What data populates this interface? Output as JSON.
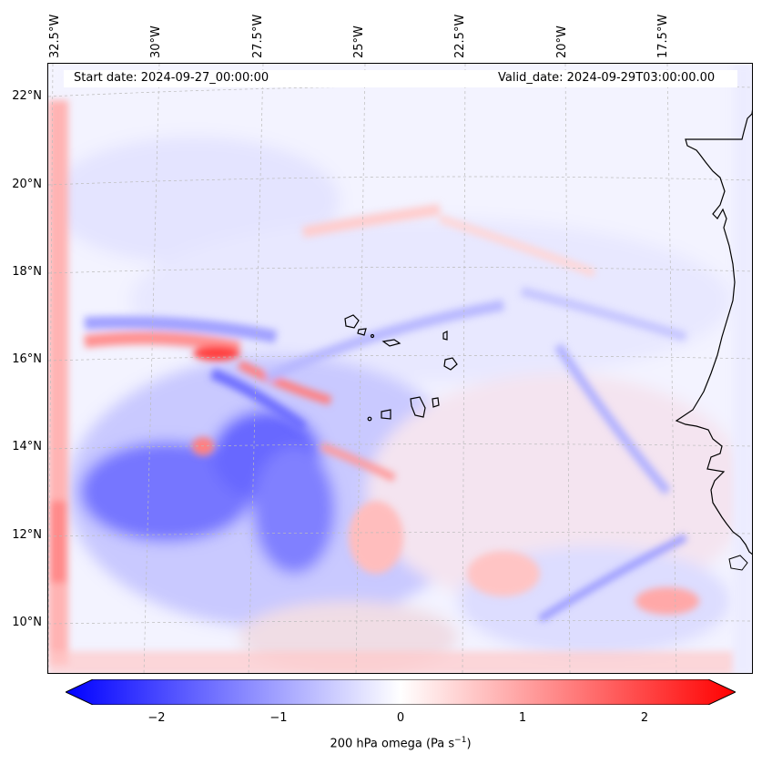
{
  "map": {
    "variable_label": "200 hPa omega (Pa s",
    "unit_superscript": "−1",
    "label_suffix": ")",
    "start_date": "Start date: 2024-09-27_00:00:00",
    "valid_date": "Valid_date: 2024-09-29T03:00:00.00",
    "lat_labels": [
      "22°N",
      "20°N",
      "18°N",
      "16°N",
      "14°N",
      "12°N",
      "10°N"
    ],
    "lon_labels": [
      "32.5°W",
      "30°W",
      "27.5°W",
      "25°W",
      "22.5°W",
      "20°W",
      "17.5°W"
    ],
    "colorbar_ticks": [
      "−2",
      "−1",
      "0",
      "1",
      "2"
    ],
    "colormap": "bwr",
    "value_range": [
      -2.5,
      2.5
    ],
    "colors": {
      "negative": "#0000ff",
      "zero": "#ffffff",
      "positive": "#ff0000",
      "coastline": "#000000"
    }
  }
}
